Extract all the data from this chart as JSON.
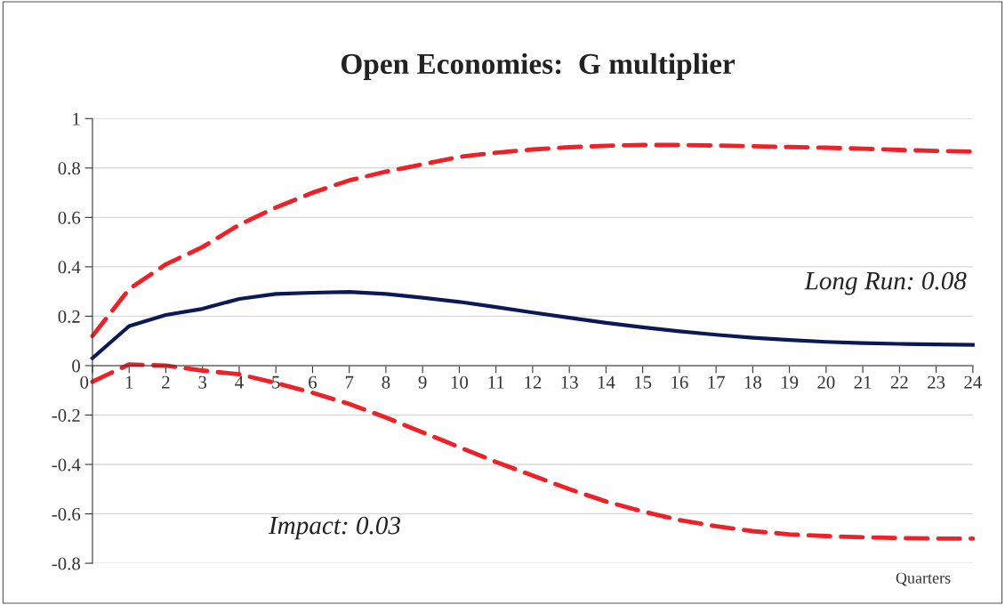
{
  "chart_data": {
    "type": "line",
    "title": "Open Economies:  G multiplier",
    "xlabel": "Quarters",
    "annotations": [
      "Long Run: 0.08",
      "Impact: 0.03"
    ],
    "x": [
      0,
      1,
      2,
      3,
      4,
      5,
      6,
      7,
      8,
      9,
      10,
      11,
      12,
      13,
      14,
      15,
      16,
      17,
      18,
      19,
      20,
      21,
      22,
      23,
      24
    ],
    "series": [
      {
        "color": "#ee2128",
        "line_style": "dashed",
        "values": [
          0.12,
          0.31,
          0.41,
          0.48,
          0.57,
          0.64,
          0.7,
          0.75,
          0.785,
          0.815,
          0.845,
          0.862,
          0.875,
          0.884,
          0.89,
          0.893,
          0.893,
          0.891,
          0.888,
          0.885,
          0.882,
          0.878,
          0.873,
          0.869,
          0.866
        ]
      },
      {
        "color": "#0b1a55",
        "line_style": "solid",
        "values": [
          0.03,
          0.16,
          0.205,
          0.23,
          0.27,
          0.29,
          0.295,
          0.298,
          0.29,
          0.275,
          0.258,
          0.237,
          0.215,
          0.194,
          0.173,
          0.155,
          0.139,
          0.125,
          0.113,
          0.104,
          0.096,
          0.091,
          0.088,
          0.086,
          0.084
        ]
      },
      {
        "color": "#ee2128",
        "line_style": "dashed",
        "values": [
          -0.065,
          0.005,
          0.0,
          -0.02,
          -0.035,
          -0.07,
          -0.11,
          -0.155,
          -0.21,
          -0.27,
          -0.33,
          -0.39,
          -0.445,
          -0.5,
          -0.55,
          -0.59,
          -0.625,
          -0.65,
          -0.67,
          -0.683,
          -0.69,
          -0.695,
          -0.698,
          -0.7,
          -0.7
        ]
      }
    ],
    "xlim": [
      0,
      24
    ],
    "xticks": [
      0,
      1,
      2,
      3,
      4,
      5,
      6,
      7,
      8,
      9,
      10,
      11,
      12,
      13,
      14,
      15,
      16,
      17,
      18,
      19,
      20,
      21,
      22,
      23,
      24
    ],
    "ylim": [
      -0.8,
      1
    ],
    "yticks": [
      -0.8,
      -0.6,
      -0.4,
      -0.2,
      0,
      0.2,
      0.4,
      0.6,
      0.8,
      1
    ],
    "grid": "y",
    "legend": false
  }
}
